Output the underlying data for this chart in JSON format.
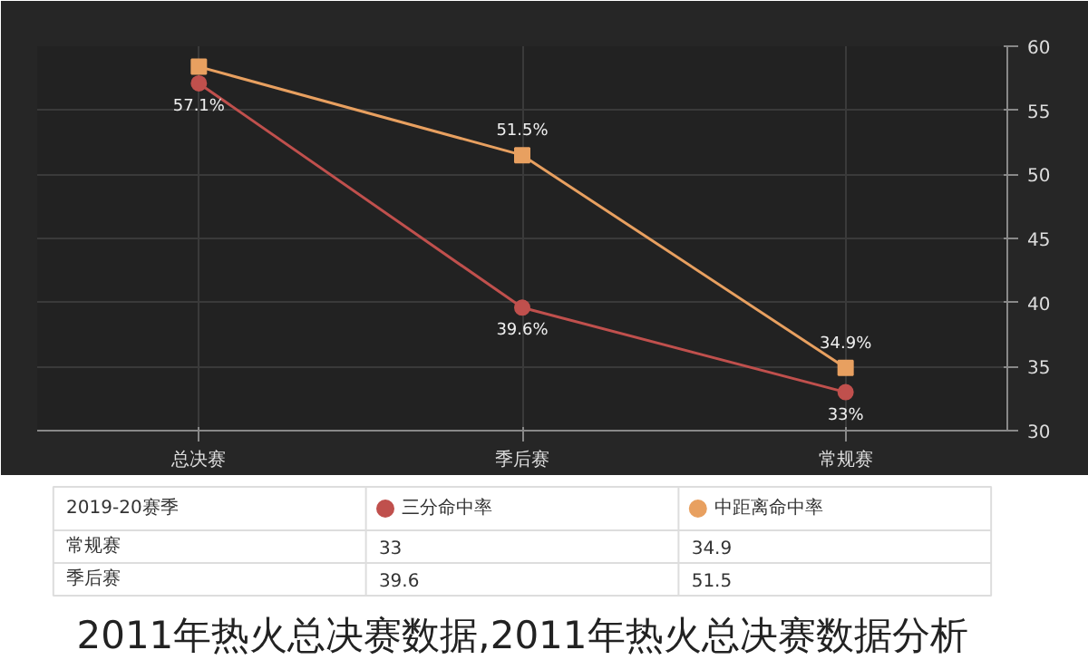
{
  "chart_data": {
    "type": "line",
    "categories": [
      "总决赛",
      "季后赛",
      "常规赛"
    ],
    "ylim": [
      30,
      60
    ],
    "yticks": [
      30,
      35,
      40,
      45,
      50,
      55,
      60
    ],
    "grid": true,
    "legend": "bottom",
    "legend_title": "2019-20赛季",
    "series": [
      {
        "name": "三分命中率",
        "color": "#c0504d",
        "marker": "circle",
        "values": [
          57.1,
          39.6,
          33
        ],
        "value_labels": [
          "57.1%",
          "39.6%",
          "33%"
        ]
      },
      {
        "name": "中距离命中率",
        "color": "#e8a060",
        "marker": "square",
        "values": [
          58.4,
          51.5,
          34.9
        ],
        "value_labels": [
          null,
          "51.5%",
          "34.9%"
        ]
      }
    ],
    "annotations": [
      "常规赛",
      "33",
      "34.9",
      "季后赛",
      "39.6",
      "51.5",
      "2011年热火总决赛数据,2011年热火总决赛数据分析"
    ]
  }
}
